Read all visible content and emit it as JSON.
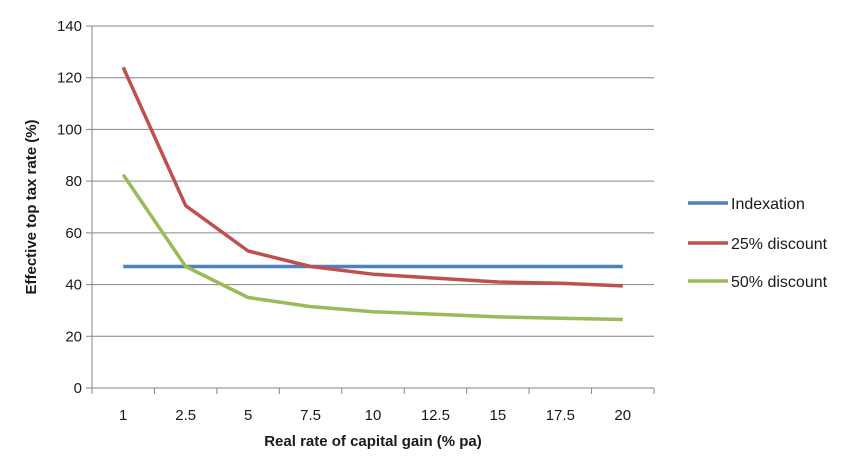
{
  "chart_data": {
    "type": "line",
    "title": "",
    "xlabel": "Real rate of capital gain (% pa)",
    "ylabel": "Effective top tax rate (%)",
    "categories": [
      "1",
      "2.5",
      "5",
      "7.5",
      "10",
      "12.5",
      "15",
      "17.5",
      "20"
    ],
    "ylim": [
      0,
      140
    ],
    "yticks": [
      "0",
      "20",
      "40",
      "60",
      "80",
      "100",
      "120",
      "140"
    ],
    "grid": "horizontal",
    "legend_position": "right",
    "series": [
      {
        "name": "Indexation",
        "color": "#4F81BD",
        "values": [
          47,
          47,
          47,
          47,
          47,
          47,
          47,
          47,
          47
        ]
      },
      {
        "name": "25% discount",
        "color": "#C0504D",
        "values": [
          124,
          70.5,
          53,
          47,
          44,
          42.5,
          41,
          40.5,
          39.5
        ]
      },
      {
        "name": "50% discount",
        "color": "#9BBB59",
        "values": [
          82.5,
          47,
          35,
          31.5,
          29.5,
          28.5,
          27.5,
          27,
          26.5
        ]
      }
    ]
  }
}
